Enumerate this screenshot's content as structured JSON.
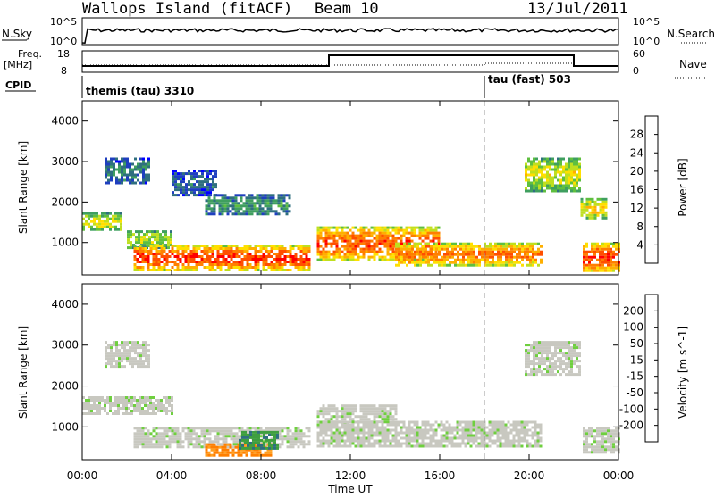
{
  "header": {
    "station": "Wallops Island (fitACF)",
    "beam": "Beam 10",
    "date": "13/Jul/2011"
  },
  "noise_panel": {
    "left_label": "N.Sky",
    "left_ticks": [
      "10^5",
      "10^0"
    ],
    "right_ticks": [
      "10^5",
      "10^0"
    ],
    "right_label": "N.Search"
  },
  "freq_panel": {
    "left_label_top": "Freq.",
    "left_label_unit": "[MHz]",
    "left_ticks": [
      "18",
      "8"
    ],
    "right_ticks": [
      "60",
      "0"
    ],
    "right_label": "Nave"
  },
  "cpid_panel": {
    "label": "CPID",
    "modes": [
      {
        "name": "themis (tau) 3310",
        "start_hour": 0
      },
      {
        "name": "tau (fast) 503",
        "start_hour": 18
      }
    ]
  },
  "colors": {
    "power": [
      "#0000ff",
      "#1f3fbf",
      "#2f6f7f",
      "#3f9f5f",
      "#5fbf3f",
      "#bfdf1f",
      "#ffdf00",
      "#ffaf00",
      "#ff7f00",
      "#ff4f00",
      "#ff0000"
    ],
    "velocity": [
      "#0000ff",
      "#1f3fbf",
      "#2f6f7f",
      "#3f9f3f",
      "#6fcf3f",
      "#c8c8c0",
      "#c8c8c0",
      "#ffa020",
      "#ff7f00",
      "#ff4000",
      "#ff0000"
    ]
  },
  "chart_data": [
    {
      "type": "heatmap",
      "name": "power",
      "ylabel": "Slant Range [km]",
      "y_ticks": [
        "1000",
        "2000",
        "3000",
        "4000"
      ],
      "ylim": [
        200,
        4500
      ],
      "xlim": [
        0,
        24
      ],
      "colorbar_label": "Power [dB]",
      "colorbar_ticks": [
        "4",
        "8",
        "12",
        "16",
        "20",
        "24",
        "28"
      ],
      "bands": [
        {
          "t0": 0.0,
          "t1": 1.8,
          "r0": 1300,
          "r1": 1750,
          "level": 0.55
        },
        {
          "t0": 1.0,
          "t1": 3.0,
          "r0": 2500,
          "r1": 3100,
          "level": 0.25
        },
        {
          "t0": 2.0,
          "t1": 4.0,
          "r0": 900,
          "r1": 1300,
          "level": 0.5
        },
        {
          "t0": 2.3,
          "t1": 10.2,
          "r0": 350,
          "r1": 950,
          "level": 0.9
        },
        {
          "t0": 4.0,
          "t1": 6.0,
          "r0": 2200,
          "r1": 2800,
          "level": 0.2
        },
        {
          "t0": 5.5,
          "t1": 9.3,
          "r0": 1700,
          "r1": 2200,
          "level": 0.3
        },
        {
          "t0": 10.5,
          "t1": 16.0,
          "r0": 600,
          "r1": 1400,
          "level": 0.85
        },
        {
          "t0": 14.0,
          "t1": 20.5,
          "r0": 450,
          "r1": 1000,
          "level": 0.8
        },
        {
          "t0": 19.8,
          "t1": 22.3,
          "r0": 2300,
          "r1": 3100,
          "level": 0.55
        },
        {
          "t0": 22.3,
          "t1": 23.4,
          "r0": 1600,
          "r1": 2100,
          "level": 0.6
        },
        {
          "t0": 22.4,
          "t1": 24.0,
          "r0": 300,
          "r1": 1000,
          "level": 0.9
        }
      ]
    },
    {
      "type": "heatmap",
      "name": "velocity",
      "xlabel": "Time UT",
      "ylabel": "Slant Range [km]",
      "y_ticks": [
        "1000",
        "2000",
        "3000",
        "4000"
      ],
      "ylim": [
        200,
        4500
      ],
      "xlim": [
        0,
        24
      ],
      "x_ticks": [
        "00:00",
        "04:00",
        "08:00",
        "12:00",
        "16:00",
        "20:00",
        "00:00"
      ],
      "colorbar_label": "Velocity [m s^-1]",
      "colorbar_ticks": [
        "-200",
        "-100",
        "-50",
        "-15",
        "15",
        "50",
        "100",
        "200"
      ],
      "bands": [
        {
          "t0": 0.0,
          "t1": 4.0,
          "r0": 1300,
          "r1": 1750,
          "level": 0.5
        },
        {
          "t0": 1.0,
          "t1": 3.0,
          "r0": 2500,
          "r1": 3100,
          "level": 0.5
        },
        {
          "t0": 2.3,
          "t1": 10.2,
          "r0": 500,
          "r1": 1000,
          "level": 0.5
        },
        {
          "t0": 5.5,
          "t1": 8.5,
          "r0": 300,
          "r1": 600,
          "level": 0.75
        },
        {
          "t0": 7.0,
          "t1": 8.8,
          "r0": 500,
          "r1": 900,
          "level": 0.3
        },
        {
          "t0": 10.5,
          "t1": 20.5,
          "r0": 550,
          "r1": 1150,
          "level": 0.5
        },
        {
          "t0": 10.5,
          "t1": 14.0,
          "r0": 1150,
          "r1": 1550,
          "level": 0.5
        },
        {
          "t0": 19.8,
          "t1": 22.3,
          "r0": 2300,
          "r1": 3100,
          "level": 0.5
        },
        {
          "t0": 22.4,
          "t1": 24.0,
          "r0": 350,
          "r1": 1000,
          "level": 0.5
        }
      ]
    }
  ],
  "footer": {
    "xlabel": "Time UT"
  }
}
